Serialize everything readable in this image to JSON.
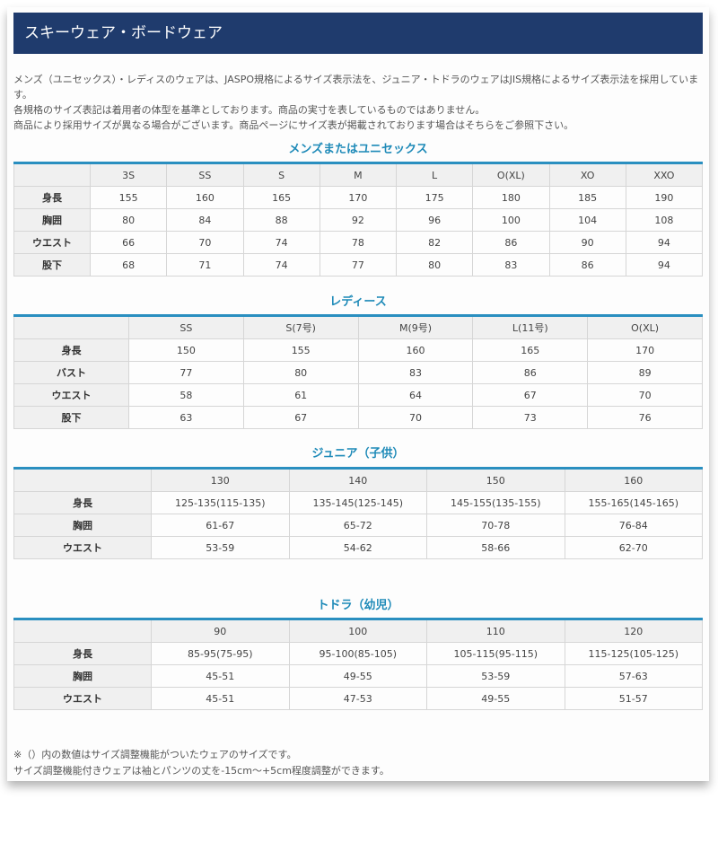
{
  "header": {
    "title": "スキーウェア・ボードウェア"
  },
  "intro": [
    "メンズ（ユニセックス）・レディスのウェアは、JASPO規格によるサイズ表示法を、ジュニア・トドラのウェアはJIS規格によるサイズ表示法を採用しています。",
    "各規格のサイズ表記は着用者の体型を基準としております。商品の実寸を表しているものではありません。",
    "商品により採用サイズが異なる場合がございます。商品ページにサイズ表が掲載されております場合はそちらをご参照下さい。"
  ],
  "colors": {
    "header_bg": "#1f3b6d",
    "accent": "#1e8ab8",
    "table_border_top": "#2a8fc0"
  },
  "tables": [
    {
      "title": "メンズまたはユニセックス",
      "columns": [
        "3S",
        "SS",
        "S",
        "M",
        "L",
        "O(XL)",
        "XO",
        "XXO"
      ],
      "rows": [
        {
          "label": "身長",
          "values": [
            "155",
            "160",
            "165",
            "170",
            "175",
            "180",
            "185",
            "190"
          ]
        },
        {
          "label": "胸囲",
          "values": [
            "80",
            "84",
            "88",
            "92",
            "96",
            "100",
            "104",
            "108"
          ]
        },
        {
          "label": "ウエスト",
          "values": [
            "66",
            "70",
            "74",
            "78",
            "82",
            "86",
            "90",
            "94"
          ]
        },
        {
          "label": "股下",
          "values": [
            "68",
            "71",
            "74",
            "77",
            "80",
            "83",
            "86",
            "94"
          ]
        }
      ]
    },
    {
      "title": "レディース",
      "columns": [
        "SS",
        "S(7号)",
        "M(9号)",
        "L(11号)",
        "O(XL)"
      ],
      "rows": [
        {
          "label": "身長",
          "values": [
            "150",
            "155",
            "160",
            "165",
            "170"
          ]
        },
        {
          "label": "バスト",
          "values": [
            "77",
            "80",
            "83",
            "86",
            "89"
          ]
        },
        {
          "label": "ウエスト",
          "values": [
            "58",
            "61",
            "64",
            "67",
            "70"
          ]
        },
        {
          "label": "股下",
          "values": [
            "63",
            "67",
            "70",
            "73",
            "76"
          ]
        }
      ]
    },
    {
      "title": "ジュニア（子供）",
      "columns": [
        "130",
        "140",
        "150",
        "160"
      ],
      "rows": [
        {
          "label": "身長",
          "values": [
            "125-135(115-135)",
            "135-145(125-145)",
            "145-155(135-155)",
            "155-165(145-165)"
          ]
        },
        {
          "label": "胸囲",
          "values": [
            "61-67",
            "65-72",
            "70-78",
            "76-84"
          ]
        },
        {
          "label": "ウエスト",
          "values": [
            "53-59",
            "54-62",
            "58-66",
            "62-70"
          ]
        }
      ]
    },
    {
      "title": "トドラ（幼児）",
      "columns": [
        "90",
        "100",
        "110",
        "120"
      ],
      "rows": [
        {
          "label": "身長",
          "values": [
            "85-95(75-95)",
            "95-100(85-105)",
            "105-115(95-115)",
            "115-125(105-125)"
          ]
        },
        {
          "label": "胸囲",
          "values": [
            "45-51",
            "49-55",
            "53-59",
            "57-63"
          ]
        },
        {
          "label": "ウエスト",
          "values": [
            "45-51",
            "47-53",
            "49-55",
            "51-57"
          ]
        }
      ]
    }
  ],
  "notes": [
    "※（）内の数値はサイズ調整機能がついたウェアのサイズです。",
    "サイズ調整機能付きウェアは袖とパンツの丈を-15cm〜+5cm程度調整ができます。"
  ]
}
